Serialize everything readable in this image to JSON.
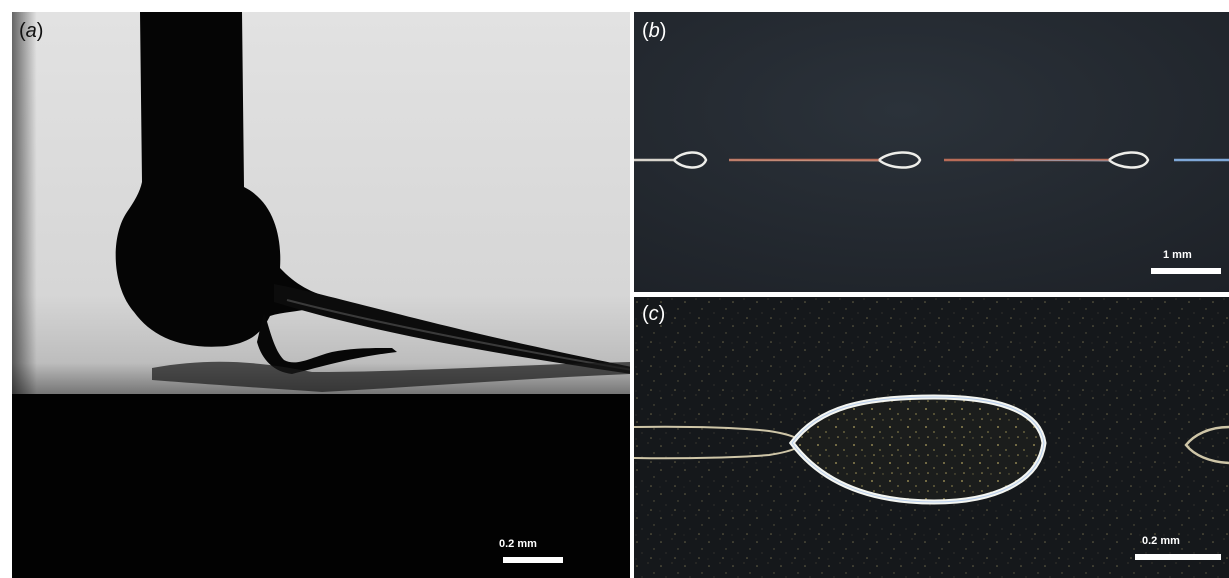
{
  "panels": [
    {
      "label_open": "(",
      "label_letter": "a",
      "label_close": ")",
      "scale_bar": "0.2 mm"
    },
    {
      "label_open": "(",
      "label_letter": "b",
      "label_close": ")",
      "scale_bar": "1 mm"
    },
    {
      "label_open": "(",
      "label_letter": "c",
      "label_close": ")",
      "scale_bar": "0.2 mm"
    }
  ],
  "colors": {
    "page_background": "#ffffff",
    "panel_a_background": "#d9d9d9",
    "panel_a_dark": "#050505",
    "panel_b_background": "#242a31",
    "panel_c_background": "#15181b",
    "filament_white": "#f4f6f2",
    "filament_red": "#b96c58",
    "filament_blue": "#7fa8d8",
    "scale_bar_white": "#ffffff"
  }
}
